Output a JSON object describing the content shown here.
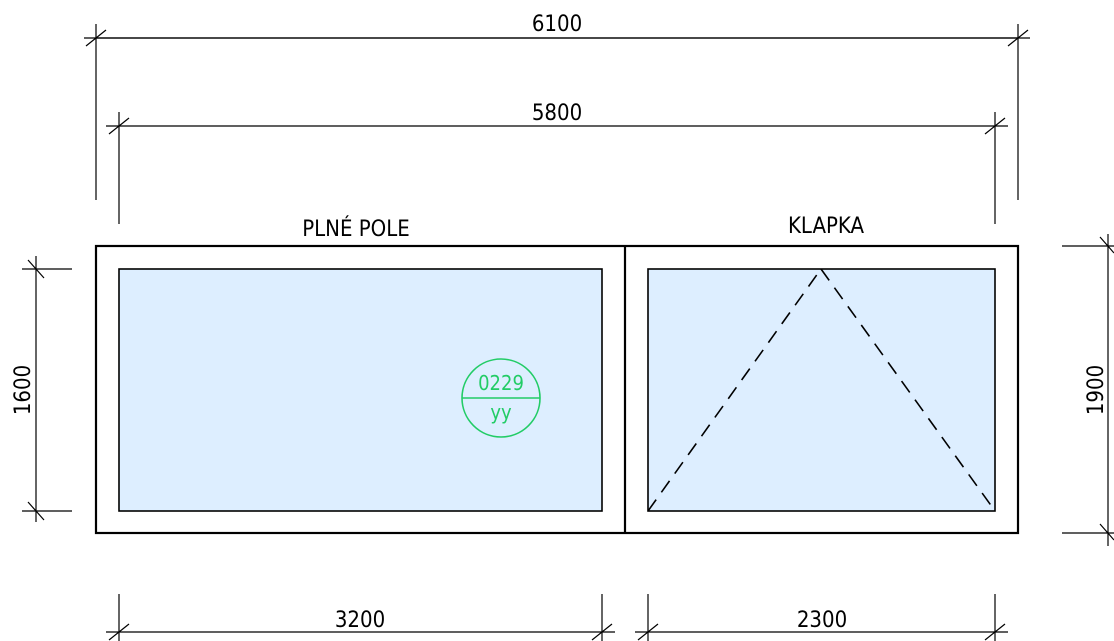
{
  "dimensions": {
    "overall_width": "6100",
    "inner_width": "5800",
    "left_height": "1600",
    "right_height": "1900",
    "left_pane_width": "3200",
    "right_pane_width": "2300"
  },
  "labels": {
    "left_pane": "PLNÉ POLE",
    "right_pane": "KLAPKA"
  },
  "tag": {
    "number": "0229",
    "code": "yy"
  },
  "colors": {
    "glass_fill": "#DDEEFF",
    "tag_color": "#22CC66",
    "line_color": "#000000"
  }
}
